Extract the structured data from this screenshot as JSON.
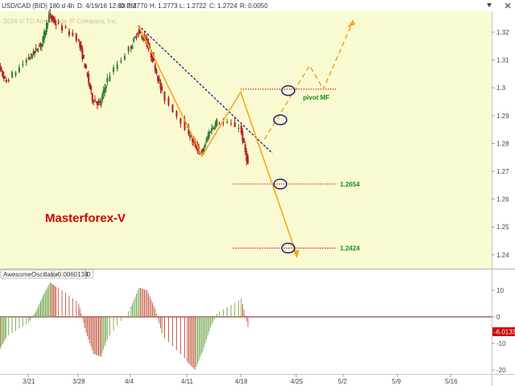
{
  "header": {
    "symbol": "USD/CAD (BID) 180 d 4h",
    "date": "D: 4/19/16 12:00 PM",
    "open": "O: 1.2770",
    "high": "H: 1.2773",
    "low": "L: 1.2722",
    "close": "C: 1.2724",
    "range": "R: 0.0050",
    "copyright": "2016 © TD Ameritrade IP Company, Inc."
  },
  "watermark": "Masterforex-V",
  "indicator": {
    "name": "AwesomeOscillator",
    "value": "-0.0060134",
    "param": "0",
    "badge": "-6.0133"
  },
  "colors": {
    "price_bg": "#fafad2",
    "candle_up": "#2e7d32",
    "candle_down": "#b71c1c",
    "zigzag": "#f5a623",
    "trendline": "#1a237e",
    "level_line": "#cc0000",
    "circle": "#1a237e",
    "ao_up": "#7cae5a",
    "ao_down": "#c86450",
    "badge_bg": "#cc0000"
  },
  "chart_data": [
    {
      "type": "candlestick",
      "title": "USD/CAD (BID) 180 d 4h",
      "x_tick_labels": [
        "3/21",
        "3/28",
        "4/4",
        "4/11",
        "4/18",
        "4/25",
        "5/2",
        "5/9",
        "5/16"
      ],
      "y_tick_labels": [
        "1.32",
        "1.31",
        "1.3",
        "1.29",
        "1.28",
        "1.27",
        "1.26",
        "1.25",
        "1.24"
      ],
      "ylim": [
        1.2365,
        1.3255
      ],
      "grid": false,
      "price_path": [
        [
          "3/16",
          1.304
        ],
        [
          "3/17",
          1.307
        ],
        [
          "3/18",
          1.302
        ],
        [
          "3/21",
          1.31
        ],
        [
          "3/22",
          1.313
        ],
        [
          "3/23",
          1.316
        ],
        [
          "3/24",
          1.326
        ],
        [
          "3/25",
          1.323
        ],
        [
          "3/28",
          1.318
        ],
        [
          "3/29",
          1.308
        ],
        [
          "3/30",
          1.296
        ],
        [
          "3/31",
          1.294
        ],
        [
          "4/1",
          1.303
        ],
        [
          "4/4",
          1.314
        ],
        [
          "4/5",
          1.32
        ],
        [
          "4/6",
          1.317
        ],
        [
          "4/7",
          1.309
        ],
        [
          "4/8",
          1.298
        ],
        [
          "4/11",
          1.286
        ],
        [
          "4/12",
          1.28
        ],
        [
          "4/13",
          1.276
        ],
        [
          "4/14",
          1.284
        ],
        [
          "4/15",
          1.288
        ],
        [
          "4/18",
          1.286
        ],
        [
          "4/19",
          1.2724
        ]
      ],
      "annotations": {
        "zigzag": [
          [
            "4/5",
            1.3225
          ],
          [
            "4/13",
            1.2755
          ],
          [
            "4/18",
            1.2985
          ],
          [
            "4/25",
            1.2405
          ]
        ],
        "projection": [
          [
            "4/21",
            1.2815
          ],
          [
            "4/27",
            1.308
          ],
          [
            "4/29",
            1.2995
          ],
          [
            "5/3",
            1.3225
          ]
        ],
        "trendline": [
          [
            "4/5",
            1.3225
          ],
          [
            "4/22",
            1.2765
          ]
        ],
        "levels": [
          {
            "label": "pivot MF",
            "value": 1.2995,
            "from": "4/18",
            "to": "5/1"
          },
          {
            "label": "1.2654",
            "value": 1.2654,
            "from": "4/17",
            "to": "5/1"
          },
          {
            "label": "1.2424",
            "value": 1.2424,
            "from": "4/17",
            "to": "5/1"
          }
        ],
        "circles": [
          [
            "4/24",
            1.299
          ],
          [
            "4/23",
            1.2885
          ],
          [
            "4/23",
            1.2654
          ],
          [
            "4/24",
            1.2424
          ]
        ]
      }
    },
    {
      "type": "bar",
      "title": "AwesomeOscillator",
      "y_tick_labels": [
        "10",
        "0",
        "-10",
        "-20"
      ],
      "ylim": [
        -21,
        13
      ],
      "current_value": -6.0133,
      "bars": [
        [
          "3/16",
          -6
        ],
        [
          "3/17",
          -12
        ],
        [
          "3/18",
          -7
        ],
        [
          "3/21",
          -2
        ],
        [
          "3/22",
          2
        ],
        [
          "3/23",
          8
        ],
        [
          "3/24",
          13
        ],
        [
          "3/25",
          11
        ],
        [
          "3/28",
          5
        ],
        [
          "3/29",
          -6
        ],
        [
          "3/30",
          -14
        ],
        [
          "3/31",
          -15
        ],
        [
          "4/1",
          -7
        ],
        [
          "4/4",
          4
        ],
        [
          "4/5",
          11
        ],
        [
          "4/6",
          10
        ],
        [
          "4/7",
          3
        ],
        [
          "4/8",
          -8
        ],
        [
          "4/11",
          -17
        ],
        [
          "4/12",
          -20
        ],
        [
          "4/13",
          -13
        ],
        [
          "4/14",
          -4
        ],
        [
          "4/15",
          2
        ],
        [
          "4/18",
          7
        ],
        [
          "4/19",
          -6
        ]
      ]
    }
  ]
}
